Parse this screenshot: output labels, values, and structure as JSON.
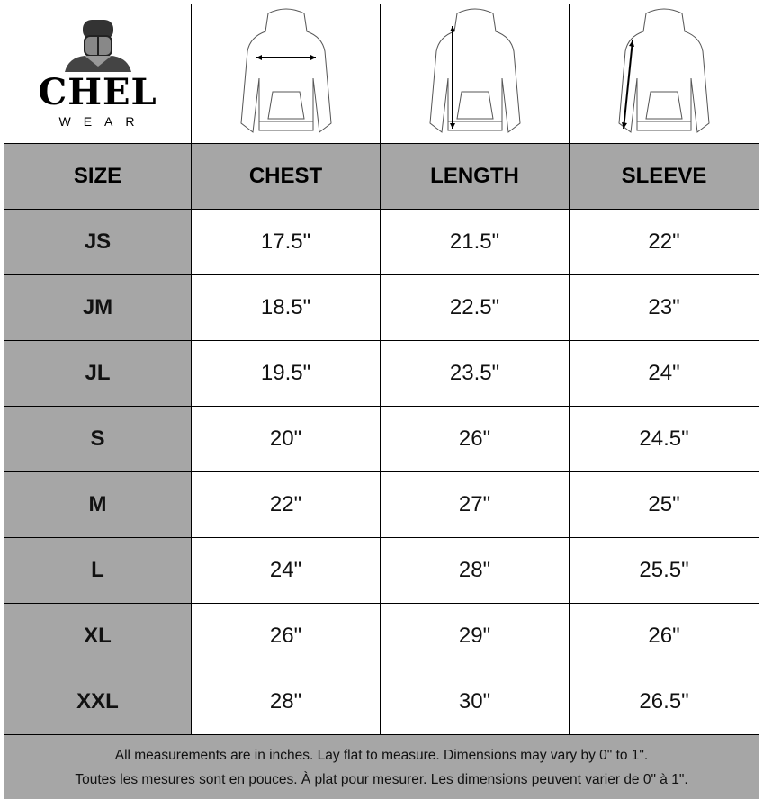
{
  "brand": {
    "name": "CHEL",
    "sub": "WEAR"
  },
  "headers": [
    "SIZE",
    "CHEST",
    "LENGTH",
    "SLEEVE"
  ],
  "illustrations": [
    {
      "icon": "hoodie-chest-icon"
    },
    {
      "icon": "hoodie-length-icon"
    },
    {
      "icon": "hoodie-sleeve-icon"
    }
  ],
  "rows": [
    {
      "size": "JS",
      "chest": "17.5\"",
      "length": "21.5\"",
      "sleeve": "22\""
    },
    {
      "size": "JM",
      "chest": "18.5\"",
      "length": "22.5\"",
      "sleeve": "23\""
    },
    {
      "size": "JL",
      "chest": "19.5\"",
      "length": "23.5\"",
      "sleeve": "24\""
    },
    {
      "size": "S",
      "chest": "20\"",
      "length": "26\"",
      "sleeve": "24.5\""
    },
    {
      "size": "M",
      "chest": "22\"",
      "length": "27\"",
      "sleeve": "25\""
    },
    {
      "size": "L",
      "chest": "24\"",
      "length": "28\"",
      "sleeve": "25.5\""
    },
    {
      "size": "XL",
      "chest": "26\"",
      "length": "29\"",
      "sleeve": "26\""
    },
    {
      "size": "XXL",
      "chest": "28\"",
      "length": "30\"",
      "sleeve": "26.5\""
    }
  ],
  "footer": {
    "en": "All measurements are in inches. Lay flat to measure. Dimensions may vary by 0\" to 1\".",
    "fr": "Toutes les mesures sont en pouces. À plat pour mesurer. Les dimensions peuvent varier de 0\" à 1\"."
  },
  "colors": {
    "header_bg": "#a6a6a6",
    "border": "#000000"
  }
}
